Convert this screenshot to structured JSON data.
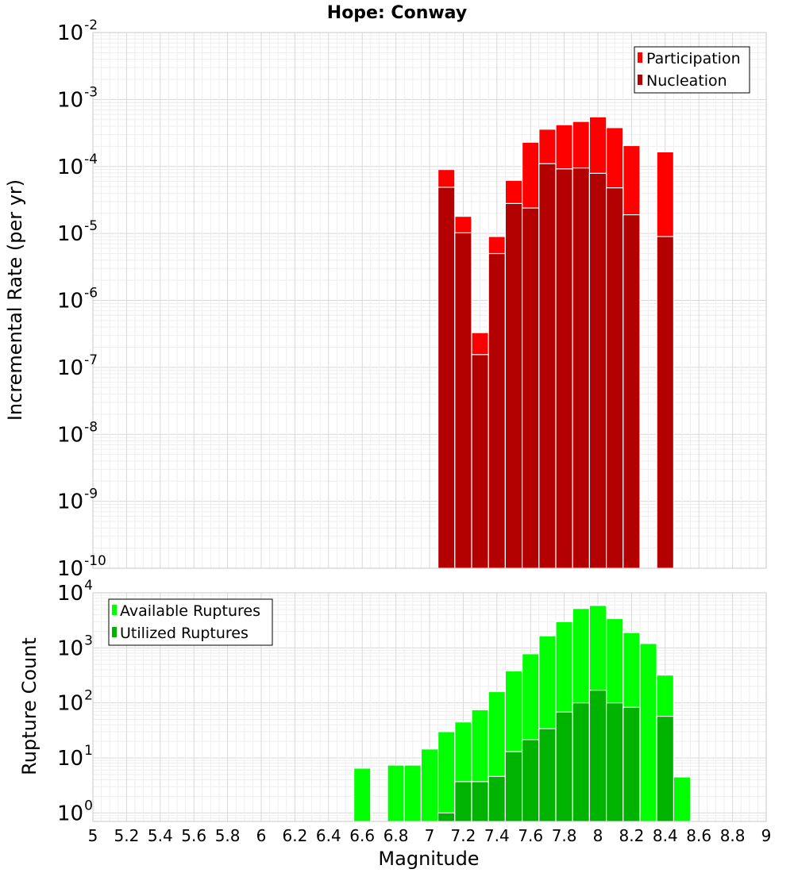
{
  "chart_data": [
    {
      "type": "bar",
      "title": "Hope: Conway",
      "ylabel": "Incremental Rate (per yr)",
      "xlabel": "",
      "y_scale": "log",
      "xlim": [
        5,
        9
      ],
      "ylim": [
        1e-10,
        0.01
      ],
      "grid": true,
      "legend_position": "top-right",
      "bar_width": 0.1,
      "x": [
        7.1,
        7.2,
        7.3,
        7.4,
        7.5,
        7.6,
        7.7,
        7.8,
        7.9,
        8.0,
        8.1,
        8.2,
        8.3,
        8.4,
        8.5
      ],
      "series": [
        {
          "name": "Participation",
          "color": "#ff0000",
          "values": [
            9e-05,
            1.8e-05,
            3.3e-07,
            9e-06,
            6.2e-05,
            0.00023,
            0.00036,
            0.00042,
            0.00047,
            0.00055,
            0.00038,
            0.000205,
            null,
            0.000165,
            null
          ]
        },
        {
          "name": "Nucleation",
          "color": "#b30000",
          "values": [
            4.9e-05,
            1.02e-05,
            1.55e-07,
            5e-06,
            2.8e-05,
            2.4e-05,
            0.00011,
            9.2e-05,
            9.5e-05,
            7.9e-05,
            4.8e-05,
            1.9e-05,
            null,
            9e-06,
            null
          ]
        }
      ],
      "yticks": [
        {
          "base": "10",
          "exp": "-10"
        },
        {
          "base": "10",
          "exp": "-9"
        },
        {
          "base": "10",
          "exp": "-8"
        },
        {
          "base": "10",
          "exp": "-7"
        },
        {
          "base": "10",
          "exp": "-6"
        },
        {
          "base": "10",
          "exp": "-5"
        },
        {
          "base": "10",
          "exp": "-4"
        },
        {
          "base": "10",
          "exp": "-3"
        },
        {
          "base": "10",
          "exp": "-2"
        }
      ]
    },
    {
      "type": "bar",
      "title": "",
      "ylabel": "Rupture Count",
      "xlabel": "Magnitude",
      "y_scale": "log",
      "xlim": [
        5,
        9
      ],
      "ylim": [
        0.7,
        10000
      ],
      "grid": true,
      "legend_position": "top-left",
      "bar_width": 0.1,
      "x": [
        6.6,
        6.7,
        6.8,
        6.9,
        7.0,
        7.1,
        7.2,
        7.3,
        7.4,
        7.5,
        7.6,
        7.7,
        7.8,
        7.9,
        8.0,
        8.1,
        8.2,
        8.3,
        8.4,
        8.5,
        8.6
      ],
      "series": [
        {
          "name": "Available Ruptures",
          "color": "#00ff00",
          "values": [
            6.5,
            null,
            7.4,
            7.4,
            14.5,
            30,
            45,
            75,
            160,
            380,
            780,
            1650,
            3000,
            5200,
            5900,
            3400,
            1900,
            1200,
            320,
            4.5,
            null
          ]
        },
        {
          "name": "Utilized Ruptures",
          "color": "#00b300",
          "values": [
            null,
            null,
            null,
            null,
            null,
            1,
            3.7,
            3.7,
            4.6,
            13,
            21.5,
            34,
            68,
            100,
            170,
            100,
            83,
            null,
            57,
            null,
            null
          ]
        }
      ],
      "yticks": [
        {
          "base": "10",
          "exp": "0"
        },
        {
          "base": "10",
          "exp": "1"
        },
        {
          "base": "10",
          "exp": "2"
        },
        {
          "base": "10",
          "exp": "3"
        },
        {
          "base": "10",
          "exp": "4"
        }
      ],
      "xticks": [
        "5",
        "5.2",
        "5.4",
        "5.6",
        "5.8",
        "6",
        "6.2",
        "6.4",
        "6.6",
        "6.8",
        "7",
        "7.2",
        "7.4",
        "7.6",
        "7.8",
        "8",
        "8.2",
        "8.4",
        "8.6",
        "8.8",
        "9"
      ]
    }
  ]
}
